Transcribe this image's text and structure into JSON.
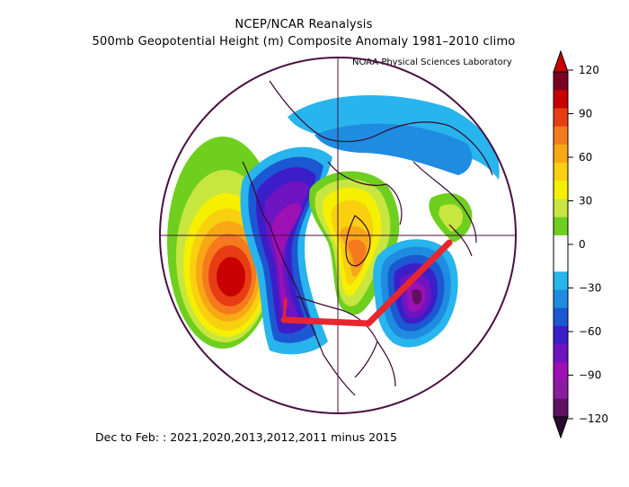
{
  "header": {
    "source": "NCEP/NCAR Reanalysis",
    "description": "500mb Geopotential Height (m) Composite Anomaly 1981–2010 climo",
    "credit": "NOAA Physical Sciences Laboratory"
  },
  "footer": {
    "caption": "Dec to Feb: : 2021,2020,2013,2012,2011 minus 2015"
  },
  "colorbar": {
    "ticks": [
      "120",
      "90",
      "60",
      "30",
      "0",
      "−30",
      "−60",
      "−90",
      "−120"
    ],
    "colors": [
      "#7a0020",
      "#c80000",
      "#e83c14",
      "#f57a1e",
      "#f8a814",
      "#f8d010",
      "#f4f000",
      "#c8e640",
      "#6ecf1e",
      "#ffffff",
      "#ffffff",
      "#28b4ec",
      "#1e8ce0",
      "#1c58d2",
      "#3c1ec8",
      "#6e14c0",
      "#9c10b4",
      "#8a1ca0",
      "#60105e"
    ],
    "arrow_top_color": "#c80000",
    "arrow_bottom_color": "#2a0a30"
  },
  "map": {
    "projection": "north polar stereographic",
    "border_color": "#4a1040"
  },
  "annotation": {
    "color": "#e8262e",
    "description": "hand-drawn red line"
  }
}
